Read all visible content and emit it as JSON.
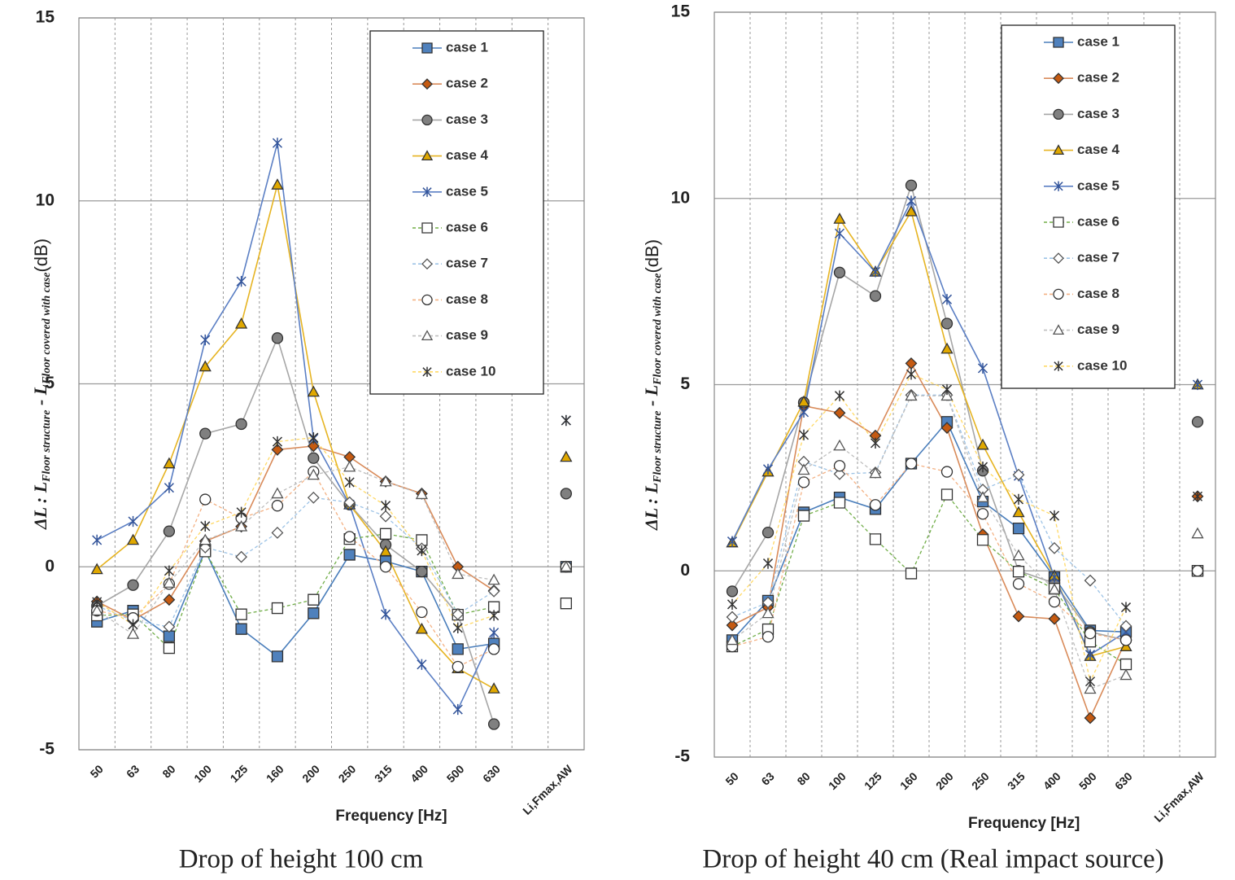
{
  "chart_data": [
    {
      "type": "line",
      "caption": "Drop of height 100 cm",
      "x_label": "Frequency [Hz]",
      "y_label": [
        "ΔL : L",
        "Floor structure",
        " - L",
        "Floor covered with case",
        "(dB)"
      ],
      "categories": [
        "50",
        "63",
        "80",
        "100",
        "125",
        "160",
        "200",
        "250",
        "315",
        "400",
        "500",
        "630",
        null,
        "Li,Fmax,AW"
      ],
      "ylim": [
        -5,
        15
      ],
      "yticks": [
        -5,
        0,
        5,
        10,
        15
      ],
      "grid": true,
      "legend": "upper right",
      "series": [
        {
          "name": "case 1",
          "color": "#4a7ebb",
          "marker": "square",
          "marker_color": "#4f81bd",
          "filled": true,
          "dashed": false,
          "values": [
            -1.5,
            -1.2,
            -1.9,
            0.45,
            -1.7,
            -2.45,
            -1.27,
            0.33,
            0.15,
            -0.13,
            -2.25,
            -2.1,
            null,
            0
          ]
        },
        {
          "name": "case 2",
          "color": "#d98b5a",
          "marker": "diamond",
          "marker_color": "#c55a11",
          "filled": true,
          "dashed": false,
          "values": [
            -0.95,
            -1.45,
            -0.9,
            0.7,
            1.1,
            3.2,
            3.3,
            3.0,
            2.33,
            2.0,
            0,
            -0.65,
            null,
            0
          ]
        },
        {
          "name": "case 3",
          "color": "#a6a6a6",
          "marker": "circle",
          "marker_color": "#808080",
          "filled": true,
          "dashed": false,
          "values": [
            -1.07,
            -0.5,
            0.97,
            3.64,
            3.9,
            6.25,
            2.97,
            1.7,
            0.6,
            -0.13,
            -1.3,
            -4.3,
            null,
            2
          ]
        },
        {
          "name": "case 4",
          "color": "#e6b422",
          "marker": "triangle",
          "marker_color": "#e0a800",
          "filled": true,
          "dashed": false,
          "values": [
            -0.07,
            0.73,
            2.82,
            5.47,
            6.64,
            10.44,
            4.78,
            1.7,
            0.42,
            -1.7,
            -2.78,
            -3.33,
            null,
            3
          ]
        },
        {
          "name": "case 5",
          "color": "#5b7fc4",
          "marker": "asterisk",
          "marker_color": "#34559a",
          "filled": false,
          "dashed": false,
          "values": [
            0.73,
            1.24,
            2.16,
            6.2,
            7.8,
            11.58,
            3.5,
            1.7,
            -1.3,
            -2.67,
            -3.9,
            -1.8,
            null,
            4
          ]
        },
        {
          "name": "case 6",
          "color": "#70ad47",
          "marker": "square",
          "marker_color": "#333333",
          "filled": false,
          "dashed": true,
          "values": [
            -1.33,
            -1.3,
            -2.22,
            0.42,
            -1.3,
            -1.13,
            -0.9,
            0.76,
            0.9,
            0.73,
            -1.31,
            -1.1,
            null,
            -1
          ]
        },
        {
          "name": "case 7",
          "color": "#9dc3e6",
          "marker": "diamond",
          "marker_color": "#555555",
          "filled": false,
          "dashed": true,
          "values": [
            -1.07,
            -1.47,
            -1.64,
            0.53,
            0.27,
            0.93,
            1.89,
            1.76,
            1.38,
            0.5,
            -1.3,
            -0.67,
            null,
            0
          ]
        },
        {
          "name": "case 8",
          "color": "#f4b183",
          "marker": "circle",
          "marker_color": "#333333",
          "filled": false,
          "dashed": true,
          "values": [
            -1.2,
            -1.4,
            -0.47,
            1.84,
            1.33,
            1.67,
            2.6,
            0.82,
            0,
            -1.24,
            -2.73,
            -2.25,
            null,
            0
          ]
        },
        {
          "name": "case 9",
          "color": "#bfbfbf",
          "marker": "triangle",
          "marker_color": "#555555",
          "filled": false,
          "dashed": true,
          "values": [
            -1.2,
            -1.84,
            -0.44,
            0.73,
            1.1,
            2.0,
            2.51,
            2.73,
            2.33,
            1.98,
            -0.2,
            -0.36,
            null,
            0
          ]
        },
        {
          "name": "case 10",
          "color": "#ffd966",
          "marker": "asterisk",
          "marker_color": "#333333",
          "filled": false,
          "dashed": true,
          "values": [
            -0.96,
            -1.58,
            -0.11,
            1.11,
            1.49,
            3.42,
            3.53,
            2.31,
            1.67,
            0.44,
            -1.67,
            -1.33,
            null,
            4
          ]
        }
      ]
    },
    {
      "type": "line",
      "caption": "Drop of height 40 cm (Real impact source)",
      "x_label": "Frequency [Hz]",
      "y_label": [
        "ΔL : L",
        "Floor structure",
        " - L",
        "Floor covered with case",
        "(dB)"
      ],
      "categories": [
        "50",
        "63",
        "80",
        "100",
        "125",
        "160",
        "200",
        "250",
        "315",
        "400",
        "500",
        "630",
        null,
        "Li,Fmax,AW"
      ],
      "ylim": [
        -5,
        15
      ],
      "yticks": [
        -5,
        0,
        5,
        10,
        15
      ],
      "grid": true,
      "legend": "upper right",
      "series": [
        {
          "name": "case 1",
          "color": "#4a7ebb",
          "marker": "square",
          "marker_color": "#4f81bd",
          "filled": true,
          "dashed": false,
          "values": [
            -1.86,
            -0.8,
            1.57,
            1.97,
            1.66,
            2.88,
            4.0,
            1.86,
            1.14,
            -0.17,
            -1.6,
            -1.64,
            null,
            0
          ]
        },
        {
          "name": "case 2",
          "color": "#d98b5a",
          "marker": "diamond",
          "marker_color": "#c55a11",
          "filled": true,
          "dashed": false,
          "values": [
            -1.46,
            -0.98,
            4.43,
            4.24,
            3.63,
            5.57,
            3.84,
            0.98,
            -1.22,
            -1.29,
            -3.95,
            -1.86,
            null,
            2
          ]
        },
        {
          "name": "case 3",
          "color": "#a6a6a6",
          "marker": "circle",
          "marker_color": "#808080",
          "filled": true,
          "dashed": false,
          "values": [
            -0.55,
            1.03,
            4.52,
            8.01,
            7.38,
            10.35,
            6.64,
            2.69,
            0,
            -0.33,
            -1.64,
            -1.86,
            null,
            4
          ]
        },
        {
          "name": "case 4",
          "color": "#e6b422",
          "marker": "triangle",
          "marker_color": "#e0a800",
          "filled": true,
          "dashed": false,
          "values": [
            0.76,
            2.66,
            4.54,
            9.45,
            8.03,
            9.65,
            5.96,
            3.38,
            1.57,
            -0.13,
            -2.29,
            -2.03,
            null,
            5
          ]
        },
        {
          "name": "case 5",
          "color": "#5b7fc4",
          "marker": "asterisk",
          "marker_color": "#34559a",
          "filled": false,
          "dashed": false,
          "values": [
            0.79,
            2.73,
            4.26,
            9.06,
            8.03,
            9.93,
            7.29,
            5.44,
            2.55,
            -0.17,
            -2.25,
            -1.64,
            null,
            5
          ]
        },
        {
          "name": "case 6",
          "color": "#70ad47",
          "marker": "square",
          "marker_color": "#333333",
          "filled": false,
          "dashed": true,
          "values": [
            -2.03,
            -1.57,
            1.48,
            1.83,
            0.85,
            -0.07,
            2.05,
            0.83,
            -0.02,
            -0.48,
            -1.9,
            -2.51,
            null,
            0
          ]
        },
        {
          "name": "case 7",
          "color": "#9dc3e6",
          "marker": "diamond",
          "marker_color": "#555555",
          "filled": false,
          "dashed": true,
          "values": [
            -1.24,
            -0.85,
            2.93,
            2.6,
            2.64,
            4.72,
            4.72,
            2.18,
            2.58,
            0.61,
            -0.26,
            -1.48,
            null,
            0
          ]
        },
        {
          "name": "case 8",
          "color": "#f4b183",
          "marker": "circle",
          "marker_color": "#333333",
          "filled": false,
          "dashed": true,
          "values": [
            -2.03,
            -1.77,
            2.38,
            2.82,
            1.77,
            2.88,
            2.66,
            1.53,
            -0.35,
            -0.83,
            -1.68,
            -1.86,
            null,
            0
          ]
        },
        {
          "name": "case 9",
          "color": "#bfbfbf",
          "marker": "triangle",
          "marker_color": "#555555",
          "filled": false,
          "dashed": true,
          "values": [
            -1.86,
            -1.14,
            2.71,
            3.36,
            2.62,
            4.7,
            4.7,
            1.97,
            0.41,
            -0.5,
            -3.17,
            -2.8,
            null,
            1
          ]
        },
        {
          "name": "case 10",
          "color": "#ffd966",
          "marker": "asterisk",
          "marker_color": "#333333",
          "filled": false,
          "dashed": true,
          "values": [
            -0.9,
            0.2,
            3.65,
            4.7,
            3.43,
            5.28,
            4.87,
            2.79,
            1.92,
            1.48,
            -2.97,
            -0.98,
            null,
            2
          ]
        }
      ]
    }
  ]
}
